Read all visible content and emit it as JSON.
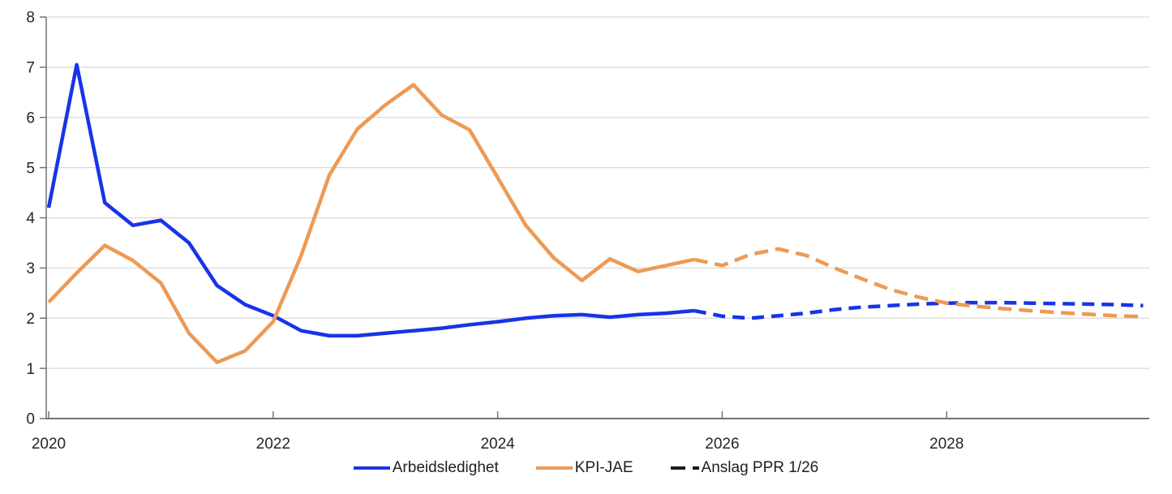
{
  "chart_data": {
    "type": "line",
    "title": "",
    "x_start_year": 2020,
    "x_step_years": 0.25,
    "x_range": [
      2020,
      2029.75
    ],
    "x_tick_years": [
      2020,
      2022,
      2024,
      2026,
      2028
    ],
    "x_tick_labels": [
      "2020",
      "2022",
      "2024",
      "2026",
      "2028"
    ],
    "ylim": [
      0,
      8
    ],
    "y_ticks": [
      0,
      1,
      2,
      3,
      4,
      5,
      6,
      7,
      8
    ],
    "grid": "horizontal-only",
    "legend_position": "bottom-center",
    "projection_label": "Anslag PPR 1/26",
    "projection_start_index": 24,
    "series": [
      {
        "name": "Arbeidsledighet",
        "color": "#1834E8",
        "style_history": "solid",
        "style_projection": "dashed",
        "dash_pattern": [
          15,
          9
        ],
        "history": [
          4.2,
          7.05,
          4.3,
          3.85,
          3.95,
          3.5,
          2.65,
          2.27,
          2.05,
          1.75,
          1.65,
          1.65,
          1.7,
          1.75,
          1.8,
          1.87,
          1.93,
          2.0,
          2.05,
          2.07,
          2.02,
          2.07,
          2.1,
          2.15
        ],
        "projection": [
          2.04,
          2.0,
          2.05,
          2.1,
          2.17,
          2.22,
          2.25,
          2.28,
          2.3,
          2.31,
          2.31,
          2.3,
          2.29,
          2.28,
          2.27,
          2.25
        ]
      },
      {
        "name": "KPI-JAE",
        "color": "#EC9A55",
        "style_history": "solid",
        "style_projection": "dashed",
        "dash_pattern": [
          17,
          9
        ],
        "history": [
          2.32,
          2.9,
          3.45,
          3.15,
          2.7,
          1.7,
          1.12,
          1.35,
          1.93,
          3.25,
          4.85,
          5.77,
          6.25,
          6.65,
          6.05,
          5.75,
          4.8,
          3.85,
          3.2,
          2.75,
          3.18,
          2.93,
          3.05,
          3.17
        ],
        "projection": [
          3.05,
          3.27,
          3.38,
          3.25,
          3.0,
          2.78,
          2.57,
          2.42,
          2.3,
          2.24,
          2.19,
          2.15,
          2.11,
          2.08,
          2.05,
          2.03
        ]
      }
    ]
  },
  "legend": {
    "items": [
      {
        "label": "Arbeidsledighet",
        "swatch": "solid-blue"
      },
      {
        "label": "KPI-JAE",
        "swatch": "solid-orange"
      },
      {
        "label": "Anslag PPR 1/26",
        "swatch": "dashed-black"
      }
    ]
  },
  "colors": {
    "background": "#FFFFFF",
    "gridline": "#D9D9D9",
    "axis": "#737373",
    "tick_label": "#262626",
    "legend_text": "#1F1F1F",
    "projection_swatch": "#1A1A1A"
  }
}
